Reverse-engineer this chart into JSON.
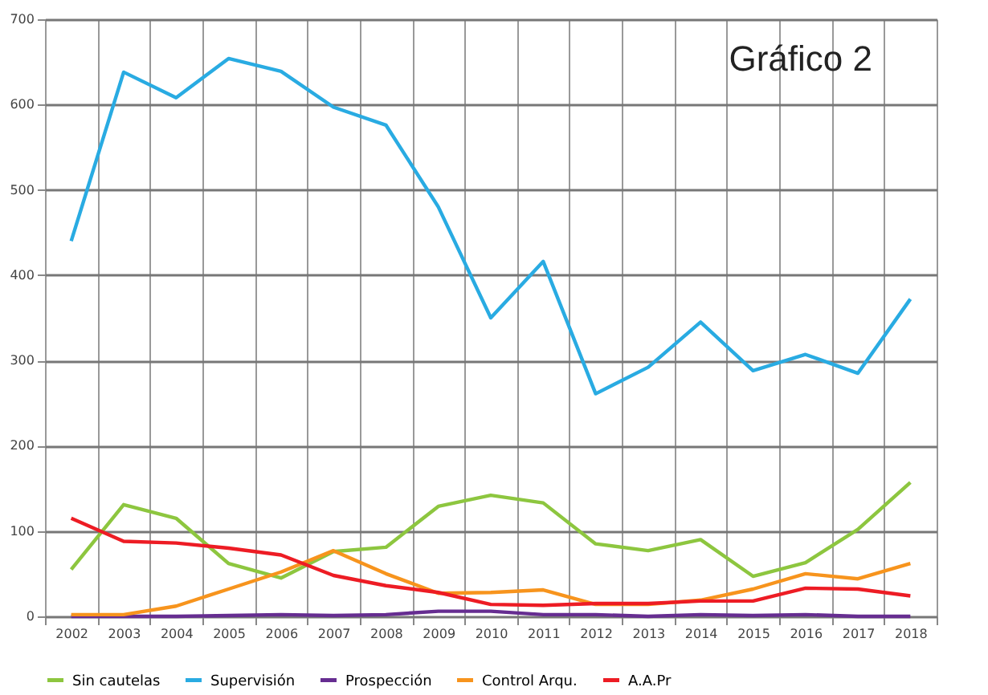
{
  "chart_data": {
    "type": "line",
    "title": "Gráfico 2",
    "categories": [
      "2002",
      "2003",
      "2004",
      "2005",
      "2006",
      "2007",
      "2008",
      "2009",
      "2010",
      "2011",
      "2012",
      "2013",
      "2014",
      "2015",
      "2016",
      "2017",
      "2018"
    ],
    "series": [
      {
        "name": "Sin cautelas",
        "color": "#8dc63f",
        "values": [
          55,
          131,
          115,
          62,
          45,
          76,
          81,
          129,
          142,
          133,
          85,
          77,
          90,
          47,
          63,
          102,
          157
        ]
      },
      {
        "name": "Supervisión",
        "color": "#29abe2",
        "values": [
          440,
          638,
          608,
          654,
          639,
          597,
          576,
          480,
          350,
          416,
          261,
          292,
          345,
          288,
          307,
          285,
          372
        ]
      },
      {
        "name": "Prospección",
        "color": "#662d91",
        "values": [
          0,
          0,
          0,
          1,
          2,
          1,
          2,
          6,
          6,
          2,
          2,
          0,
          2,
          1,
          2,
          0,
          0
        ]
      },
      {
        "name": "Control Arqu.",
        "color": "#f7941d",
        "values": [
          2,
          2,
          12,
          32,
          52,
          77,
          50,
          27,
          28,
          31,
          14,
          14,
          19,
          32,
          50,
          44,
          62
        ]
      },
      {
        "name": "A.A.Pr",
        "color": "#ed1c24",
        "values": [
          115,
          88,
          86,
          80,
          72,
          48,
          36,
          28,
          14,
          13,
          15,
          15,
          18,
          18,
          33,
          32,
          24
        ]
      }
    ],
    "ylim": [
      0,
      700
    ],
    "yticks": [
      0,
      100,
      200,
      300,
      400,
      500,
      600,
      700
    ],
    "grid": true,
    "legend": "bottom",
    "marker": "none",
    "line_style": "solid"
  }
}
